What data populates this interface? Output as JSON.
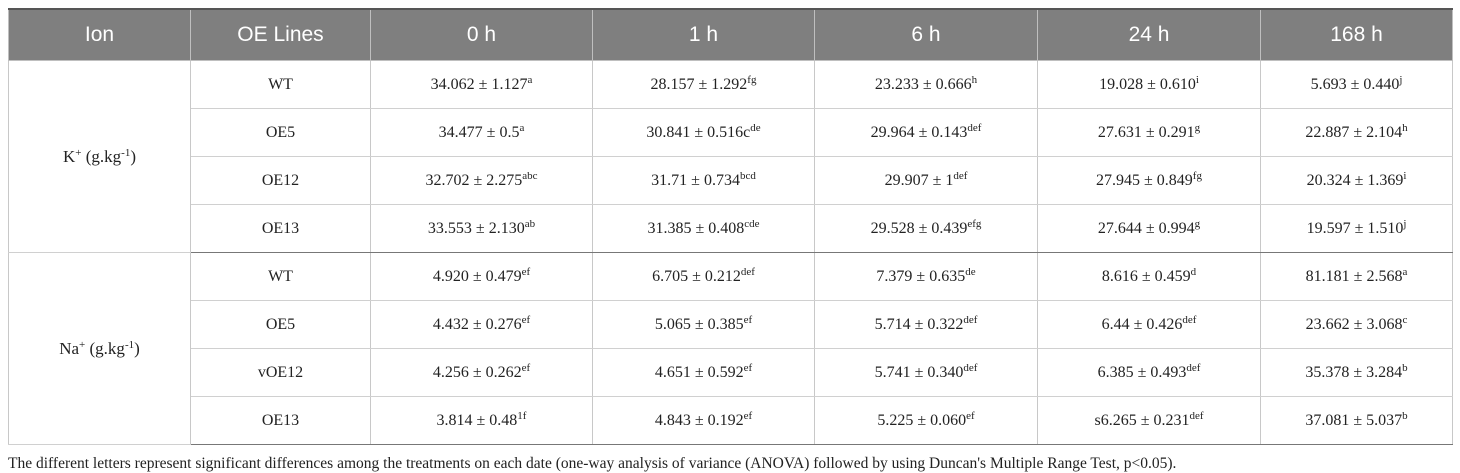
{
  "table": {
    "header": [
      "Ion",
      "OE Lines",
      "0 h",
      "1 h",
      "6 h",
      "24 h",
      "168 h"
    ],
    "groups": [
      {
        "ion": {
          "parts": [
            {
              "text": "K"
            },
            {
              "sup": "+"
            },
            {
              "text": " (g.kg"
            },
            {
              "sup": "-1"
            },
            {
              "text": ")"
            }
          ]
        },
        "rows": [
          {
            "line": "WT",
            "cells": [
              {
                "value": "34.062 ± 1.127",
                "sup": "a"
              },
              {
                "value": "28.157 ± 1.292",
                "sup": "fg"
              },
              {
                "value": "23.233 ± 0.666",
                "sup": "h"
              },
              {
                "value": "19.028 ± 0.610",
                "sup": "i"
              },
              {
                "value": "5.693 ± 0.440",
                "sup": "j"
              }
            ]
          },
          {
            "line": "OE5",
            "cells": [
              {
                "value": "34.477 ± 0.5",
                "sup": "a"
              },
              {
                "value": "30.841 ± 0.516c",
                "sup": "de"
              },
              {
                "value": "29.964 ± 0.143",
                "sup": "def"
              },
              {
                "value": "27.631 ± 0.291",
                "sup": "g"
              },
              {
                "value": "22.887 ± 2.104",
                "sup": "h"
              }
            ]
          },
          {
            "line": "OE12",
            "cells": [
              {
                "value": "32.702 ± 2.275",
                "sup": "abc"
              },
              {
                "value": "31.71 ± 0.734",
                "sup": "bcd"
              },
              {
                "value": "29.907 ± 1",
                "sup": "def"
              },
              {
                "value": "27.945 ± 0.849",
                "sup": "fg"
              },
              {
                "value": "20.324 ± 1.369",
                "sup": "i"
              }
            ]
          },
          {
            "line": "OE13",
            "cells": [
              {
                "value": "33.553 ± 2.130",
                "sup": "ab"
              },
              {
                "value": "31.385 ± 0.408",
                "sup": "cde"
              },
              {
                "value": "29.528 ± 0.439",
                "sup": "efg"
              },
              {
                "value": "27.644 ± 0.994",
                "sup": "g"
              },
              {
                "value": "19.597 ± 1.510",
                "sup": "j"
              }
            ]
          }
        ]
      },
      {
        "ion": {
          "parts": [
            {
              "text": "Na"
            },
            {
              "sup": "+"
            },
            {
              "text": " (g.kg"
            },
            {
              "sup": "-1"
            },
            {
              "text": ")"
            }
          ]
        },
        "rows": [
          {
            "line": "WT",
            "cells": [
              {
                "value": "4.920 ± 0.479",
                "sup": "ef"
              },
              {
                "value": "6.705 ± 0.212",
                "sup": "def"
              },
              {
                "value": "7.379 ± 0.635",
                "sup": "de"
              },
              {
                "value": "8.616 ± 0.459",
                "sup": "d"
              },
              {
                "value": "81.181 ± 2.568",
                "sup": "a"
              }
            ]
          },
          {
            "line": "OE5",
            "cells": [
              {
                "value": "4.432 ± 0.276",
                "sup": "ef"
              },
              {
                "value": "5.065 ± 0.385",
                "sup": "ef"
              },
              {
                "value": "5.714 ± 0.322",
                "sup": "def"
              },
              {
                "value": "6.44 ± 0.426",
                "sup": "def"
              },
              {
                "value": "23.662 ± 3.068",
                "sup": "c"
              }
            ]
          },
          {
            "line": "vOE12",
            "cells": [
              {
                "value": "4.256 ± 0.262",
                "sup": "ef"
              },
              {
                "value": "4.651 ± 0.592",
                "sup": "ef"
              },
              {
                "value": "5.741 ± 0.340",
                "sup": "def"
              },
              {
                "value": "6.385 ± 0.493",
                "sup": "def"
              },
              {
                "value": "35.378 ± 3.284",
                "sup": "b"
              }
            ]
          },
          {
            "line": "OE13",
            "cells": [
              {
                "value": "3.814 ± 0.48",
                "sup": "1f"
              },
              {
                "value": "4.843 ± 0.192",
                "sup": "ef"
              },
              {
                "value": "5.225 ± 0.060",
                "sup": "ef"
              },
              {
                "value": "s6.265 ± 0.231",
                "sup": "def"
              },
              {
                "value": "37.081 ± 5.037",
                "sup": "b"
              }
            ]
          }
        ]
      }
    ]
  },
  "footnote": "The different letters represent significant differences among the treatments on each date (one-way analysis of variance (ANOVA) followed by using Duncan's Multiple Range Test, p<0.05)."
}
